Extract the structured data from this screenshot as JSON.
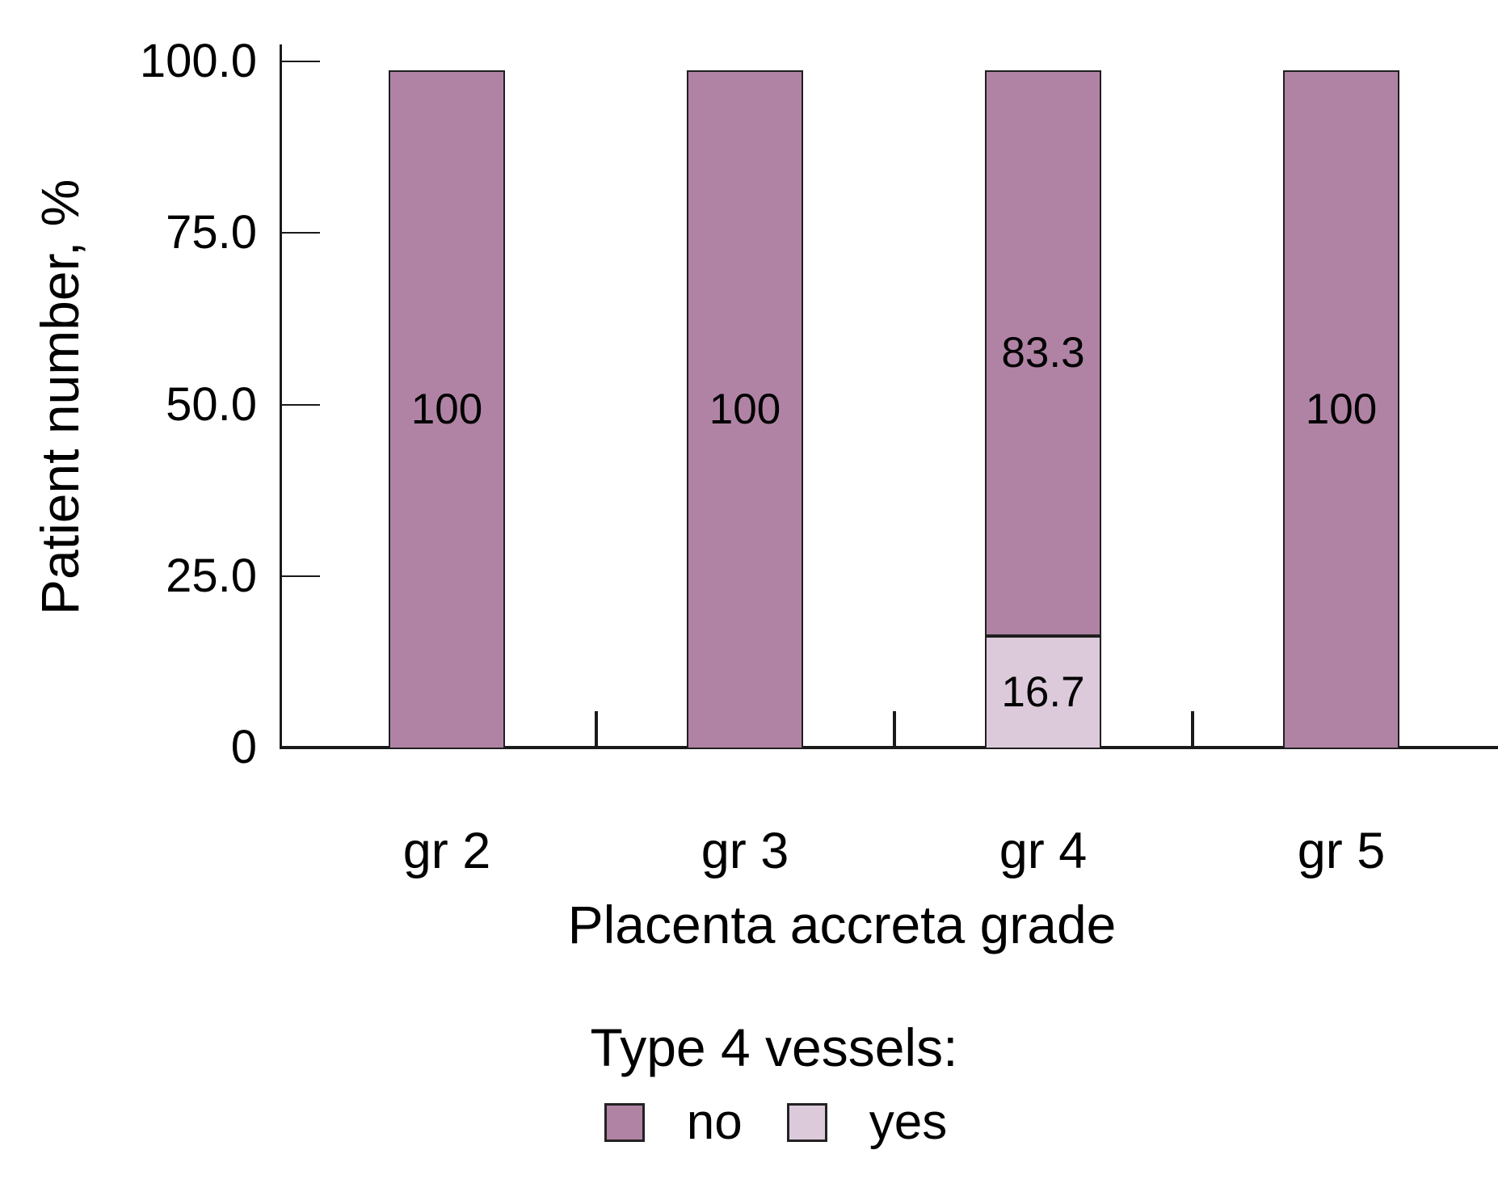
{
  "chart_data": {
    "type": "bar",
    "stacked": true,
    "categories": [
      "gr 2",
      "gr 3",
      "gr 4",
      "gr 5"
    ],
    "series": [
      {
        "name": "no",
        "color": "#b083a5",
        "values": [
          100,
          100,
          83.3,
          100
        ],
        "labels": [
          "100",
          "100",
          "83.3",
          "100"
        ]
      },
      {
        "name": "yes",
        "color": "#dccadb",
        "values": [
          0,
          0,
          16.7,
          0
        ],
        "labels": [
          "",
          "",
          "16.7",
          ""
        ]
      }
    ],
    "stack_bottom_to_top": [
      "yes",
      "no"
    ],
    "xlabel": "Placenta accreta grade",
    "ylabel": "Patient number, %",
    "yticks": [
      {
        "value": 0,
        "label": "0"
      },
      {
        "value": 25,
        "label": "25.0"
      },
      {
        "value": 50,
        "label": "50.0"
      },
      {
        "value": 75,
        "label": "75.0"
      },
      {
        "value": 100,
        "label": "100.0"
      }
    ],
    "ylim": [
      0,
      102.5
    ],
    "grid": false,
    "legend_title": "Type 4 vessels:",
    "legend_position": "bottom",
    "legend": [
      {
        "label": "no",
        "color": "#b083a5"
      },
      {
        "label": "yes",
        "color": "#dccadb"
      }
    ],
    "axis_color": "#1a1a1a",
    "text_color": "#000000",
    "background_color": "#ffffff"
  }
}
